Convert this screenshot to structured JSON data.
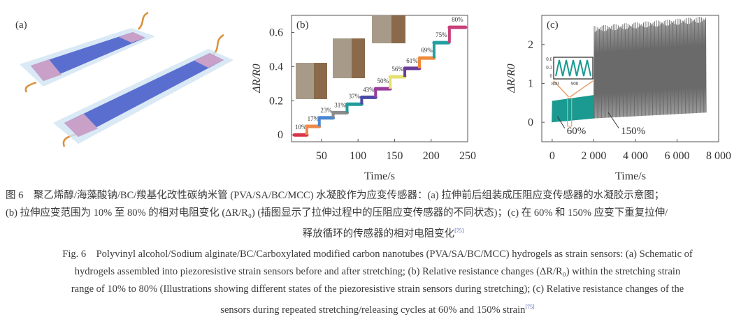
{
  "panels": {
    "a": {
      "label": "(a)"
    },
    "b": {
      "label": "(b)"
    },
    "c": {
      "label": "(c)"
    }
  },
  "chart_data": [
    {
      "type": "line",
      "panel": "(b)",
      "xlabel": "Time/s",
      "ylabel": "ΔR/R0",
      "xlim": [
        9,
        250
      ],
      "ylim": [
        -0.04,
        0.7
      ],
      "xticks": [
        50,
        100,
        150,
        200,
        250
      ],
      "yticks": [
        0,
        0.2,
        0.4,
        0.6
      ],
      "ytick_labels": [
        "0",
        "0.2",
        "0.4",
        "0.6"
      ],
      "steps": [
        {
          "label": "10%",
          "t": [
            13,
            30
          ],
          "value": 0.0,
          "color": "#d8344a"
        },
        {
          "label": "17%",
          "t": [
            30,
            47
          ],
          "value": 0.05,
          "color": "#ee8a4a"
        },
        {
          "label": "23%",
          "t": [
            47,
            66
          ],
          "value": 0.1,
          "color": "#4a86d0"
        },
        {
          "label": "31%",
          "t": [
            66,
            85
          ],
          "value": 0.13,
          "color": "#8a8a8a"
        },
        {
          "label": "37%",
          "t": [
            85,
            105
          ],
          "value": 0.18,
          "color": "#229c9a"
        },
        {
          "label": "43%",
          "t": [
            105,
            124
          ],
          "value": 0.22,
          "color": "#4a4aa8"
        },
        {
          "label": "50%",
          "t": [
            124,
            144
          ],
          "value": 0.27,
          "color": "#9a3c9c"
        },
        {
          "label": "56%",
          "t": [
            144,
            164
          ],
          "value": 0.34,
          "color": "#e6e070"
        },
        {
          "label": "61%",
          "t": [
            164,
            184
          ],
          "value": 0.39,
          "color": "#6a3c9a"
        },
        {
          "label": "69%",
          "t": [
            184,
            204
          ],
          "value": 0.45,
          "color": "#ee8a3a"
        },
        {
          "label": "75%",
          "t": [
            204,
            224
          ],
          "value": 0.54,
          "color": "#22a0a0"
        },
        {
          "label": "80%",
          "t": [
            225,
            247
          ],
          "value": 0.63,
          "color": "#c8407a"
        }
      ]
    },
    {
      "type": "line",
      "panel": "(c)",
      "xlabel": "Time/s",
      "ylabel": "ΔR/R0",
      "xlim": [
        -500,
        8000
      ],
      "ylim": [
        -0.5,
        2.75
      ],
      "xticks": [
        0,
        2000,
        4000,
        6000,
        8000
      ],
      "xtick_labels": [
        "0",
        "2 000",
        "4 000",
        "6 000",
        "8 000"
      ],
      "yticks": [
        0,
        1,
        2
      ],
      "series": [
        {
          "name": "60%",
          "color": "#1a9a90",
          "x_range": [
            0,
            2000
          ],
          "y_min": [
            0,
            0.1
          ],
          "y_max": [
            0.55,
            0.7
          ]
        },
        {
          "name": "150%",
          "color": "#6a6a6a",
          "x_range": [
            2000,
            7400
          ],
          "y_min": [
            0.1,
            0.25
          ],
          "y_max": [
            2.4,
            2.65
          ]
        }
      ],
      "inset": {
        "xlim": [
          800,
          960
        ],
        "ylim": [
          0,
          0.6
        ],
        "xticks": [
          800,
          900
        ],
        "yticks": [
          "0",
          "0.3",
          "0.6"
        ],
        "highlight_color": "#e8a070"
      }
    }
  ],
  "caption": {
    "zh_lines": [
      "图 6　聚乙烯醇/海藻酸钠/BC/羧基化改性碳纳米管 (PVA/SA/BC/MCC) 水凝胶作为应变传感器：(a) 拉伸前后组装成压阻应变传感器的水凝胶示意图；",
      "(b) 拉伸应变范围为 10% 至 80% 的相对电阻变化 (ΔR/R₀) (插图显示了拉伸过程中的压阻应变传感器的不同状态)；(c) 在 60% 和 150% 应变下重复拉伸/",
      "释放循环的传感器的相对电阻变化"
    ],
    "en_lines": [
      "Fig. 6　Polyvinyl alcohol/Sodium alginate/BC/Carboxylated modified carbon nanotubes (PVA/SA/BC/MCC) hydrogels as strain sensors: (a) Schematic of",
      "hydrogels assembled into piezoresistive strain sensors before and after stretching; (b) Relative resistance changes (ΔR/R₀) within the stretching strain",
      "range of 10% to 80% (Illustrations showing different states of the piezoresistive strain sensors during stretching); (c) Relative resistance changes of the",
      "sensors during repeated stretching/releasing cycles at 60% and 150% strain"
    ],
    "ref": "[75]"
  }
}
